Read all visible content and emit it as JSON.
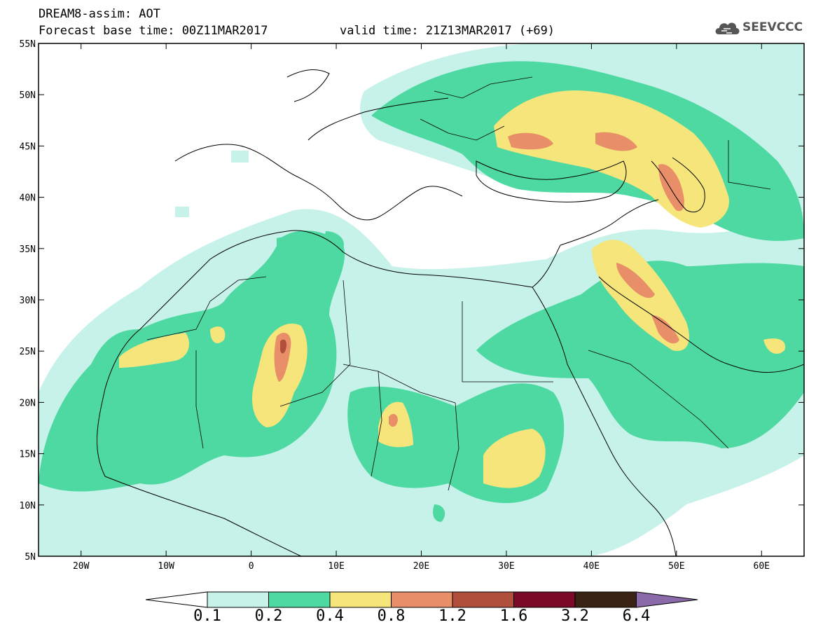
{
  "header": {
    "title": "DREAM8-assim: AOT",
    "base_time": "Forecast base time: 00Z11MAR2017",
    "valid_time": "valid time: 21Z13MAR2017 (+69)"
  },
  "logo": {
    "text": "SEEVCCC",
    "icon": "cloud-icon"
  },
  "map": {
    "lon_range": [
      -25,
      65
    ],
    "lat_range": [
      5,
      55
    ],
    "lon_ticks": [
      "20W",
      "10W",
      "0",
      "10E",
      "20E",
      "30E",
      "40E",
      "50E",
      "60E"
    ],
    "lat_ticks": [
      "5N",
      "10N",
      "15N",
      "20N",
      "25N",
      "30N",
      "35N",
      "40N",
      "45N",
      "50N",
      "55N"
    ],
    "field": "Aerosol optical thickness (AOT)"
  },
  "colorbar": {
    "labels": [
      "0.1",
      "0.2",
      "0.4",
      "0.8",
      "1.2",
      "1.6",
      "3.2",
      "6.4"
    ],
    "colors": [
      "#c6f2ea",
      "#4fd9a2",
      "#f5e57a",
      "#e88e68",
      "#b0503c",
      "#7a0a28",
      "#3a2214",
      "#8a6aa8"
    ]
  }
}
